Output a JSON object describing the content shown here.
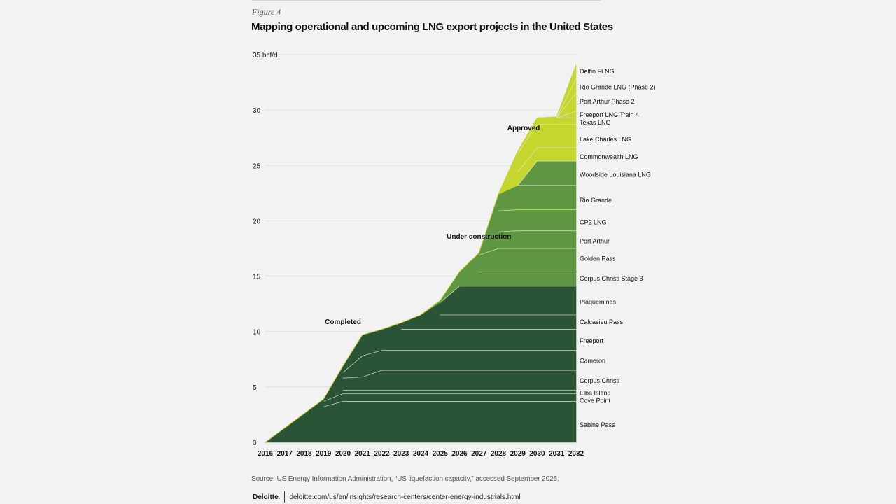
{
  "figure_label": "Figure 4",
  "source": "Source: US Energy Information Administration, “US liquefaction capacity,” accessed September 2025.",
  "footer": {
    "logo_text": "Deloitte",
    "logo_dot": ".",
    "url": "deloitte.com/us/en/insights/research-centers/center-energy-industrials.html"
  },
  "colors": {
    "completed": "#2b5336",
    "under_construction": "#5f9641",
    "approved": "#c5d62e",
    "divider": "#dfe8cf",
    "grid": "#dcdcdc",
    "background": "#f2f2f2"
  },
  "chart_data": {
    "type": "area",
    "stacked": true,
    "title": "Mapping operational and upcoming LNG export projects in the United States",
    "ylabel": "",
    "xlabel": "",
    "ylim": [
      0,
      35
    ],
    "yticks": [
      0,
      5,
      10,
      15,
      20,
      25,
      30,
      35
    ],
    "ytick_labels": [
      "0",
      "5",
      "10",
      "15",
      "20",
      "25",
      "30",
      "35 bcf/d"
    ],
    "grid": true,
    "x": [
      2016,
      2017,
      2018,
      2019,
      2020,
      2021,
      2022,
      2023,
      2024,
      2025,
      2026,
      2027,
      2028,
      2029,
      2030,
      2031,
      2032
    ],
    "group_labels": [
      {
        "text": "Completed",
        "x": 2020,
        "y": 10.9
      },
      {
        "text": "Under construction",
        "x": 2027,
        "y": 18.6
      },
      {
        "text": "Approved",
        "x": 2029.3,
        "y": 28.4
      }
    ],
    "series": [
      {
        "name": "Sabine Pass",
        "group": "completed",
        "values": [
          0,
          1.3,
          2.6,
          3.2,
          3.7,
          3.7,
          3.7,
          3.7,
          3.7,
          3.7,
          3.7,
          3.7,
          3.7,
          3.7,
          3.7,
          3.7,
          3.7
        ]
      },
      {
        "name": "Cove Point",
        "group": "completed",
        "values": [
          0,
          0,
          0,
          0.5,
          0.7,
          0.7,
          0.7,
          0.7,
          0.7,
          0.7,
          0.7,
          0.7,
          0.7,
          0.7,
          0.7,
          0.7,
          0.7
        ]
      },
      {
        "name": "Elba Island",
        "group": "completed",
        "values": [
          0,
          0,
          0,
          0.2,
          0.3,
          0.3,
          0.3,
          0.3,
          0.3,
          0.3,
          0.3,
          0.3,
          0.3,
          0.3,
          0.3,
          0.3,
          0.3
        ]
      },
      {
        "name": "Corpus Christi",
        "group": "completed",
        "values": [
          0,
          0,
          0,
          0,
          1.1,
          1.2,
          1.8,
          1.8,
          1.8,
          1.8,
          1.8,
          1.8,
          1.8,
          1.8,
          1.8,
          1.8,
          1.8
        ]
      },
      {
        "name": "Cameron",
        "group": "completed",
        "values": [
          0,
          0,
          0,
          0,
          0.5,
          1.9,
          1.8,
          1.8,
          1.8,
          1.8,
          1.8,
          1.8,
          1.8,
          1.8,
          1.8,
          1.8,
          1.8
        ]
      },
      {
        "name": "Freeport",
        "group": "completed",
        "values": [
          0,
          0,
          0,
          0,
          0.6,
          1.9,
          1.9,
          1.9,
          1.9,
          1.9,
          1.9,
          1.9,
          1.9,
          1.9,
          1.9,
          1.9,
          1.9
        ]
      },
      {
        "name": "Calcasieu Pass",
        "group": "completed",
        "values": [
          0,
          0,
          0,
          0,
          0,
          0,
          0,
          0.6,
          1.3,
          1.3,
          1.3,
          1.3,
          1.3,
          1.3,
          1.3,
          1.3,
          1.3
        ]
      },
      {
        "name": "Plaquemines",
        "group": "completed",
        "values": [
          0,
          0,
          0,
          0,
          0,
          0,
          0,
          0,
          0,
          1.1,
          2.6,
          2.6,
          2.6,
          2.6,
          2.6,
          2.6,
          2.6
        ]
      },
      {
        "name": "Corpus Christi Stage 3",
        "group": "under_construction",
        "values": [
          0,
          0,
          0,
          0,
          0,
          0,
          0,
          0,
          0,
          0.2,
          1.3,
          1.3,
          1.3,
          1.3,
          1.3,
          1.3,
          1.3
        ]
      },
      {
        "name": "Golden Pass",
        "group": "under_construction",
        "values": [
          0,
          0,
          0,
          0,
          0,
          0,
          0,
          0,
          0,
          0,
          0,
          1.5,
          2.1,
          2.1,
          2.1,
          2.1,
          2.1
        ]
      },
      {
        "name": "Port Arthur",
        "group": "under_construction",
        "values": [
          0,
          0,
          0,
          0,
          0,
          0,
          0,
          0,
          0,
          0,
          0,
          0.2,
          1.5,
          1.6,
          1.6,
          1.6,
          1.6
        ]
      },
      {
        "name": "CP2 LNG",
        "group": "under_construction",
        "values": [
          0,
          0,
          0,
          0,
          0,
          0,
          0,
          0,
          0,
          0,
          0,
          0,
          1.9,
          1.9,
          1.9,
          1.9,
          1.9
        ]
      },
      {
        "name": "Rio Grande",
        "group": "under_construction",
        "values": [
          0,
          0,
          0,
          0,
          0,
          0,
          0,
          0,
          0,
          0,
          0,
          0,
          1.5,
          2.2,
          2.2,
          2.2,
          2.2
        ]
      },
      {
        "name": "Woodside Louisiana LNG",
        "group": "under_construction",
        "values": [
          0,
          0,
          0,
          0,
          0,
          0,
          0,
          0,
          0,
          0,
          0,
          0,
          0,
          0,
          2.2,
          2.2,
          2.2
        ]
      },
      {
        "name": "Commonwealth LNG",
        "group": "approved",
        "values": [
          0,
          0,
          0,
          0,
          0,
          0,
          0,
          0,
          0,
          0,
          0,
          0,
          0,
          1.2,
          1.2,
          1.2,
          1.2
        ]
      },
      {
        "name": "Lake Charles LNG",
        "group": "approved",
        "values": [
          0,
          0,
          0,
          0,
          0,
          0,
          0,
          0,
          0,
          0,
          0,
          0,
          0,
          1.7,
          2.1,
          2.1,
          2.1
        ]
      },
      {
        "name": "Texas LNG",
        "group": "approved",
        "values": [
          0,
          0,
          0,
          0,
          0,
          0,
          0,
          0,
          0,
          0,
          0,
          0,
          0,
          0.2,
          0.6,
          0.6,
          0.6
        ]
      },
      {
        "name": "Freeport LNG Train 4",
        "group": "approved",
        "values": [
          0,
          0,
          0,
          0,
          0,
          0,
          0,
          0,
          0,
          0,
          0,
          0,
          0,
          0,
          0,
          0,
          0.6
        ]
      },
      {
        "name": "Port Arthur Phase 2",
        "group": "approved",
        "values": [
          0,
          0,
          0,
          0,
          0,
          0,
          0,
          0,
          0,
          0,
          0,
          0,
          0,
          0,
          0,
          0,
          1.6
        ]
      },
      {
        "name": "Rio Grande LNG (Phase 2)",
        "group": "approved",
        "values": [
          0,
          0,
          0,
          0,
          0,
          0,
          0,
          0,
          0,
          0,
          0,
          0,
          0,
          0,
          0,
          0,
          1.3
        ]
      },
      {
        "name": "Delfin FLNG",
        "group": "approved",
        "values": [
          0,
          0,
          0,
          0,
          0,
          0,
          0,
          0,
          0,
          0,
          0,
          0,
          0,
          0,
          0,
          0.1,
          1.3
        ]
      }
    ],
    "series_label_y": {
      "Sabine Pass": 1.6,
      "Cove Point": 3.8,
      "Elba Island": 4.5,
      "Corpus Christi": 5.6,
      "Cameron": 7.4,
      "Freeport": 9.2,
      "Calcasieu Pass": 10.9,
      "Plaquemines": 12.7,
      "Corpus Christi Stage 3": 14.8,
      "Golden Pass": 16.6,
      "Port Arthur": 18.2,
      "CP2 LNG": 19.9,
      "Rio Grande": 21.9,
      "Woodside Louisiana LNG": 24.2,
      "Commonwealth LNG": 25.8,
      "Lake Charles LNG": 27.4,
      "Texas LNG": 28.9,
      "Freeport LNG Train 4": 29.6,
      "Port Arthur Phase 2": 30.8,
      "Rio Grande LNG (Phase 2)": 32.1,
      "Delfin FLNG": 33.5
    }
  }
}
